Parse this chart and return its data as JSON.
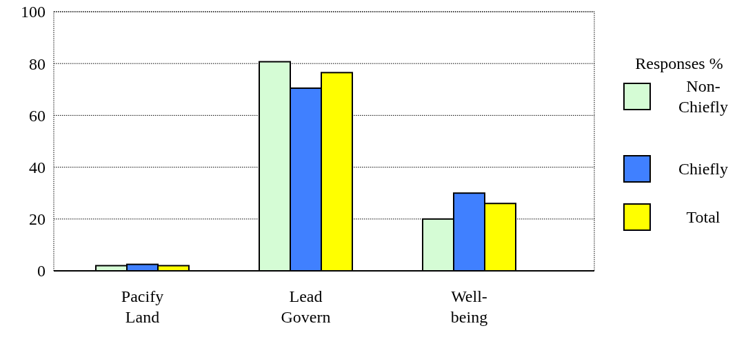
{
  "chart_data": {
    "type": "bar",
    "categories": [
      "Pacify Land",
      "Lead Govern",
      "Well-being"
    ],
    "series": [
      {
        "name": "Non-Chiefly",
        "color": "#d5fcd5",
        "values": [
          2,
          80.7,
          20
        ]
      },
      {
        "name": "Chiefly",
        "color": "#4080ff",
        "values": [
          2.5,
          70.5,
          30
        ]
      },
      {
        "name": "Total",
        "color": "#ffff00",
        "values": [
          2,
          76.5,
          26
        ]
      }
    ],
    "ylim": [
      0,
      100
    ],
    "yticks": [
      0,
      20,
      40,
      60,
      80,
      100
    ],
    "grid": "y",
    "legend": "right",
    "legend_title": "Responses %"
  }
}
